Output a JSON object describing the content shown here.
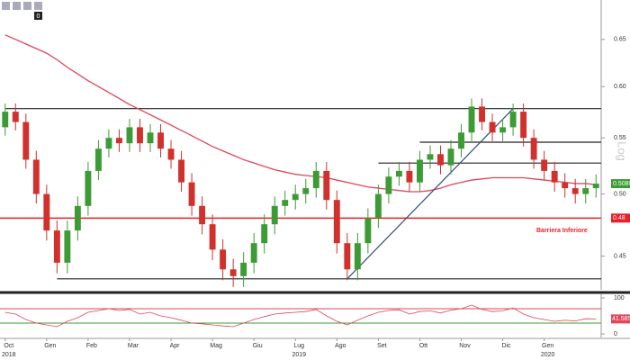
{
  "chart_data": {
    "type": "candlestick",
    "log_scale": true,
    "scale_label": "Log",
    "badge": "0",
    "categories": [
      "Oct",
      null,
      null,
      null,
      "Gen",
      null,
      null,
      null,
      "Feb",
      null,
      null,
      null,
      "Mar",
      null,
      null,
      null,
      "Apr",
      null,
      null,
      null,
      "Mag",
      null,
      null,
      null,
      "Giu",
      null,
      null,
      null,
      "Lug",
      null,
      null,
      null,
      "Ago",
      null,
      null,
      null,
      "Set",
      null,
      null,
      null,
      "Ott",
      null,
      null,
      null,
      "Nov",
      null,
      null,
      null,
      "Dic",
      null,
      null,
      null,
      "Gen",
      null,
      null,
      null,
      null,
      null
    ],
    "years": [
      "2018",
      "2019",
      "2020"
    ],
    "open": [
      0.56,
      0.575,
      0.565,
      0.53,
      0.5,
      0.47,
      0.445,
      0.47,
      0.49,
      0.52,
      0.54,
      0.55,
      0.545,
      0.56,
      0.545,
      0.555,
      0.54,
      0.53,
      0.51,
      0.49,
      0.475,
      0.455,
      0.44,
      0.435,
      0.445,
      0.46,
      0.475,
      0.49,
      0.495,
      0.5,
      0.505,
      0.52,
      0.495,
      0.46,
      0.44,
      0.46,
      0.48,
      0.5,
      0.515,
      0.52,
      0.51,
      0.53,
      0.535,
      0.525,
      0.54,
      0.555,
      0.58,
      0.565,
      0.555,
      0.56,
      0.575,
      0.55,
      0.53,
      0.52,
      0.51,
      0.505,
      0.5,
      0.505
    ],
    "high": [
      0.583,
      0.583,
      0.573,
      0.538,
      0.508,
      0.478,
      0.478,
      0.498,
      0.528,
      0.548,
      0.558,
      0.558,
      0.568,
      0.568,
      0.563,
      0.563,
      0.548,
      0.538,
      0.518,
      0.498,
      0.483,
      0.463,
      0.448,
      0.453,
      0.468,
      0.483,
      0.498,
      0.503,
      0.508,
      0.513,
      0.528,
      0.528,
      0.503,
      0.468,
      0.468,
      0.488,
      0.508,
      0.523,
      0.528,
      0.528,
      0.538,
      0.543,
      0.543,
      0.548,
      0.563,
      0.588,
      0.588,
      0.573,
      0.568,
      0.583,
      0.583,
      0.558,
      0.538,
      0.528,
      0.518,
      0.513,
      0.513,
      0.517
    ],
    "low": [
      0.552,
      0.557,
      0.522,
      0.492,
      0.462,
      0.437,
      0.437,
      0.462,
      0.482,
      0.512,
      0.532,
      0.537,
      0.537,
      0.537,
      0.537,
      0.532,
      0.522,
      0.502,
      0.482,
      0.467,
      0.447,
      0.432,
      0.427,
      0.427,
      0.437,
      0.452,
      0.467,
      0.482,
      0.487,
      0.492,
      0.497,
      0.487,
      0.452,
      0.432,
      0.432,
      0.452,
      0.472,
      0.492,
      0.507,
      0.502,
      0.502,
      0.522,
      0.517,
      0.517,
      0.532,
      0.547,
      0.557,
      0.547,
      0.547,
      0.552,
      0.542,
      0.522,
      0.512,
      0.502,
      0.497,
      0.492,
      0.492,
      0.497
    ],
    "close": [
      0.575,
      0.565,
      0.53,
      0.5,
      0.47,
      0.445,
      0.47,
      0.49,
      0.52,
      0.54,
      0.55,
      0.545,
      0.56,
      0.545,
      0.555,
      0.54,
      0.53,
      0.51,
      0.49,
      0.475,
      0.455,
      0.44,
      0.435,
      0.445,
      0.46,
      0.475,
      0.49,
      0.495,
      0.5,
      0.505,
      0.52,
      0.495,
      0.46,
      0.44,
      0.46,
      0.48,
      0.5,
      0.515,
      0.52,
      0.51,
      0.53,
      0.535,
      0.525,
      0.54,
      0.555,
      0.58,
      0.565,
      0.555,
      0.56,
      0.575,
      0.55,
      0.53,
      0.52,
      0.51,
      0.505,
      0.5,
      0.505,
      0.5089
    ],
    "up_color": "#3d9b35",
    "down_color": "#d0312d",
    "moving_average": {
      "color": "#e0455a",
      "values": [
        0.655,
        0.65,
        0.645,
        0.64,
        0.635,
        0.628,
        0.62,
        0.613,
        0.606,
        0.6,
        0.594,
        0.588,
        0.582,
        0.577,
        0.572,
        0.567,
        0.562,
        0.557,
        0.552,
        0.547,
        0.542,
        0.538,
        0.534,
        0.53,
        0.527,
        0.524,
        0.521,
        0.519,
        0.517,
        0.516,
        0.515,
        0.514,
        0.512,
        0.51,
        0.508,
        0.506,
        0.505,
        0.504,
        0.503,
        0.502,
        0.502,
        0.503,
        0.505,
        0.508,
        0.51,
        0.512,
        0.513,
        0.514,
        0.514,
        0.514,
        0.514,
        0.513,
        0.512,
        0.511,
        0.51,
        0.509,
        0.509,
        0.508
      ]
    },
    "last_price": 0.5089,
    "last_color": "#3d9b35",
    "levels": [
      {
        "value": 0.578,
        "from": 0
      },
      {
        "value": 0.433,
        "from": 5
      },
      {
        "value": 0.527,
        "from": 36
      },
      {
        "value": 0.546,
        "from": 40
      }
    ],
    "trendline": {
      "x": [
        33,
        49
      ],
      "values": [
        0.433,
        0.578
      ],
      "color": "#2f4f7a"
    },
    "barrier": {
      "value": 0.48,
      "name": "Barriera Inferiore",
      "color": "#e8202a"
    },
    "ylim": [
      0.425,
      0.695
    ],
    "yticks": [
      {
        "value": 0.45,
        "label": "0.45"
      },
      {
        "value": 0.5,
        "label": "0.50"
      },
      {
        "value": 0.55,
        "label": "0.55"
      },
      {
        "value": 0.6,
        "label": "0.60"
      },
      {
        "value": 0.65,
        "label": "0.65"
      }
    ],
    "oscillator": {
      "color": "#e0455a",
      "values": [
        60,
        55,
        40,
        30,
        25,
        20,
        35,
        45,
        60,
        65,
        70,
        65,
        68,
        55,
        60,
        50,
        45,
        38,
        30,
        28,
        25,
        22,
        20,
        30,
        40,
        48,
        55,
        58,
        60,
        62,
        68,
        50,
        35,
        25,
        38,
        50,
        60,
        65,
        67,
        55,
        62,
        64,
        58,
        66,
        70,
        80,
        68,
        62,
        64,
        72,
        55,
        45,
        40,
        35,
        38,
        36,
        42,
        41.5858
      ],
      "ylim": [
        0,
        100
      ],
      "yticks": [
        100,
        0
      ],
      "levels": [
        {
          "value": 70,
          "color": "#e0455a"
        },
        {
          "value": 30,
          "color": "#3d9b35"
        }
      ]
    }
  }
}
